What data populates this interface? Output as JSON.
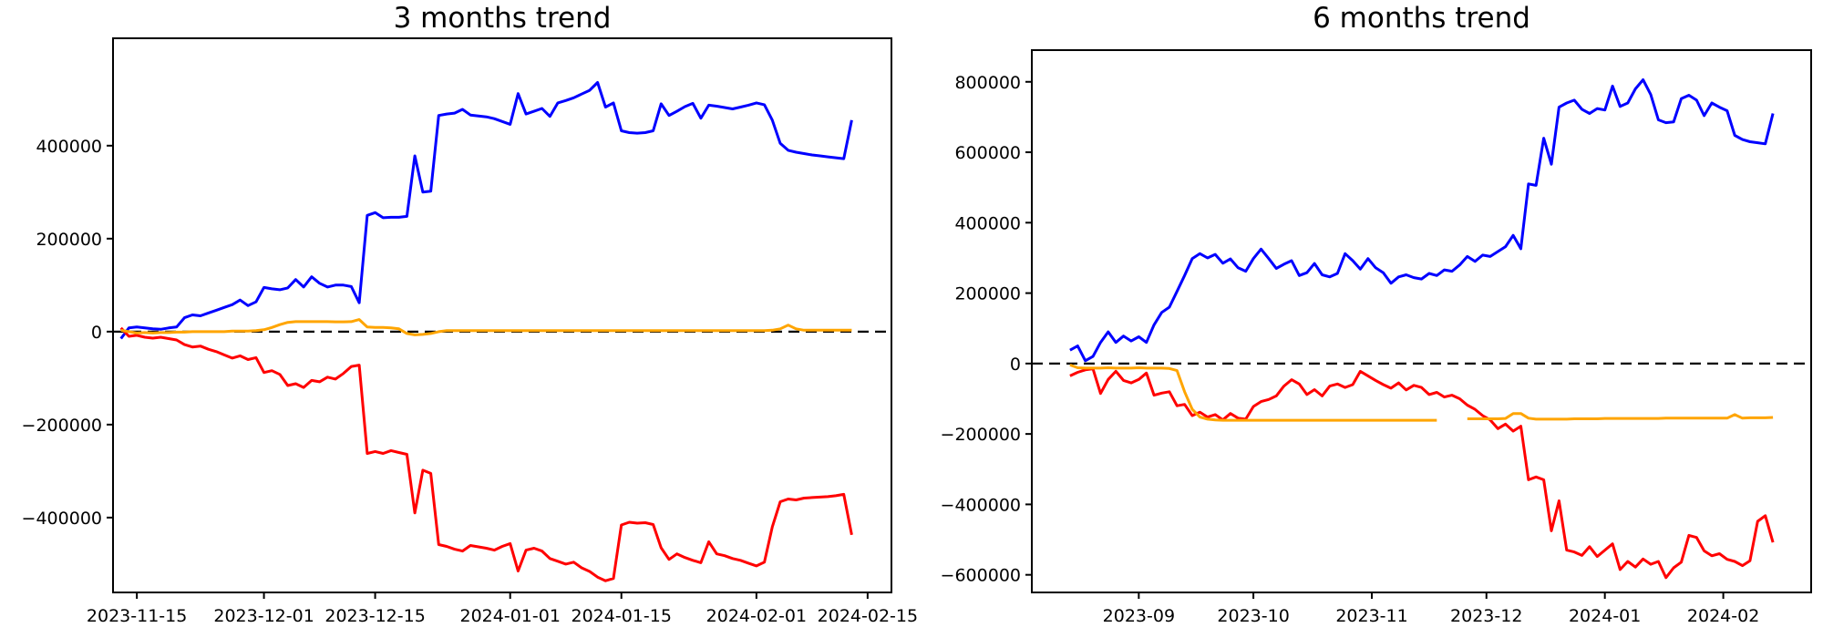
{
  "figure": {
    "background": "#ffffff",
    "axes_box_color": "#000000"
  },
  "chart_data": [
    {
      "type": "line",
      "title": "3 months trend",
      "legend": null,
      "grid": false,
      "xlim": [
        "2023-11-12",
        "2024-02-18"
      ],
      "ylim": [
        -561000,
        631000
      ],
      "yticks": [
        {
          "value": 400000,
          "label": "400000"
        },
        {
          "value": 200000,
          "label": "200000"
        },
        {
          "value": 0,
          "label": "0"
        },
        {
          "value": -200000,
          "label": "−200000"
        },
        {
          "value": -400000,
          "label": "−400000"
        }
      ],
      "xticks": [
        {
          "date": "2023-11-15",
          "label": "2023-11-15"
        },
        {
          "date": "2023-12-01",
          "label": "2023-12-01"
        },
        {
          "date": "2023-12-15",
          "label": "2023-12-15"
        },
        {
          "date": "2024-01-01",
          "label": "2024-01-01"
        },
        {
          "date": "2024-01-15",
          "label": "2024-01-15"
        },
        {
          "date": "2024-02-01",
          "label": "2024-02-01"
        },
        {
          "date": "2024-02-15",
          "label": "2024-02-15"
        }
      ],
      "zero_line": {
        "style": "dashed",
        "color": "#000000"
      },
      "x_start": "2023-11-13",
      "x_step_days": 1,
      "series": [
        {
          "name": "blue",
          "color": "#0000ff",
          "values": [
            -15000,
            8000,
            10000,
            8000,
            6000,
            5000,
            8000,
            10000,
            30000,
            36000,
            34000,
            40000,
            46000,
            52000,
            58000,
            68000,
            56000,
            64000,
            95000,
            92000,
            90000,
            94000,
            112000,
            96000,
            118000,
            104000,
            96000,
            100000,
            100000,
            97000,
            62000,
            250000,
            256000,
            245000,
            246000,
            246000,
            248000,
            378000,
            300000,
            302000,
            465000,
            468000,
            470000,
            478000,
            466000,
            464000,
            462000,
            458000,
            452000,
            446000,
            512000,
            468000,
            474000,
            480000,
            463000,
            492000,
            497000,
            503000,
            511000,
            519000,
            536000,
            483000,
            492000,
            432000,
            428000,
            427000,
            428000,
            432000,
            490000,
            465000,
            474000,
            484000,
            491000,
            459000,
            487000,
            485000,
            482000,
            479000,
            483000,
            487000,
            492000,
            488000,
            455000,
            405000,
            390000,
            386000,
            383000,
            380000,
            378000,
            376000,
            374000,
            372000,
            455000
          ]
        },
        {
          "name": "red",
          "color": "#ff0000",
          "values": [
            8000,
            -10000,
            -8000,
            -12000,
            -14000,
            -12000,
            -15000,
            -18000,
            -28000,
            -33000,
            -31000,
            -38000,
            -43000,
            -50000,
            -57000,
            -52000,
            -60000,
            -56000,
            -88000,
            -84000,
            -92000,
            -116000,
            -112000,
            -120000,
            -105000,
            -108000,
            -98000,
            -102000,
            -90000,
            -75000,
            -72000,
            -262000,
            -258000,
            -262000,
            -256000,
            -260000,
            -264000,
            -390000,
            -298000,
            -305000,
            -458000,
            -462000,
            -468000,
            -472000,
            -460000,
            -463000,
            -466000,
            -470000,
            -462000,
            -456000,
            -515000,
            -470000,
            -466000,
            -472000,
            -488000,
            -494000,
            -500000,
            -496000,
            -508000,
            -516000,
            -528000,
            -536000,
            -531000,
            -416000,
            -410000,
            -412000,
            -411000,
            -415000,
            -465000,
            -490000,
            -478000,
            -486000,
            -492000,
            -497000,
            -452000,
            -478000,
            -482000,
            -488000,
            -492000,
            -498000,
            -504000,
            -496000,
            -420000,
            -366000,
            -360000,
            -362000,
            -358000,
            -357000,
            -356000,
            -355000,
            -353000,
            -350000,
            -437000
          ]
        },
        {
          "name": "orange",
          "color": "#ffa500",
          "values": [
            3000,
            0,
            -3000,
            -2000,
            -3000,
            -2000,
            -2000,
            -1000,
            -1000,
            0,
            0,
            0,
            0,
            0,
            1000,
            1000,
            1000,
            2000,
            4000,
            9000,
            15000,
            20000,
            21500,
            21500,
            21500,
            21500,
            21500,
            21000,
            21000,
            21500,
            26000,
            10000,
            9000,
            9000,
            8000,
            6000,
            -4000,
            -7000,
            -6000,
            -4000,
            0,
            2000,
            2000,
            2000,
            2000,
            2000,
            2000,
            2000,
            2000,
            2000,
            2000,
            2000,
            2000,
            2000,
            2000,
            2000,
            2000,
            2000,
            2000,
            2000,
            2000,
            2000,
            2000,
            2000,
            2000,
            2000,
            2000,
            2000,
            2000,
            2000,
            2000,
            2000,
            2000,
            2000,
            2000,
            2000,
            2000,
            2000,
            2000,
            2000,
            2000,
            2000,
            3000,
            6000,
            14000,
            6000,
            3000,
            3000,
            3000,
            3000,
            3000,
            3000,
            3000
          ]
        }
      ]
    },
    {
      "type": "line",
      "title": "6 months trend",
      "legend": null,
      "grid": false,
      "xlim": [
        "2023-08-04",
        "2024-02-24"
      ],
      "ylim": [
        -650000,
        890000
      ],
      "yticks": [
        {
          "value": 800000,
          "label": "800000"
        },
        {
          "value": 600000,
          "label": "600000"
        },
        {
          "value": 400000,
          "label": "400000"
        },
        {
          "value": 200000,
          "label": "200000"
        },
        {
          "value": 0,
          "label": "0"
        },
        {
          "value": -200000,
          "label": "−200000"
        },
        {
          "value": -400000,
          "label": "−400000"
        },
        {
          "value": -600000,
          "label": "−600000"
        }
      ],
      "xticks": [
        {
          "date": "2023-09-01",
          "label": "2023-09"
        },
        {
          "date": "2023-10-01",
          "label": "2023-10"
        },
        {
          "date": "2023-11-01",
          "label": "2023-11"
        },
        {
          "date": "2023-12-01",
          "label": "2023-12"
        },
        {
          "date": "2024-01-01",
          "label": "2024-01"
        },
        {
          "date": "2024-02-01",
          "label": "2024-02"
        }
      ],
      "zero_line": {
        "style": "dashed",
        "color": "#000000"
      },
      "x_start": "2023-08-14",
      "x_step_days": 2,
      "series": [
        {
          "name": "blue",
          "color": "#0000ff",
          "values": [
            38000,
            50000,
            8000,
            20000,
            60000,
            90000,
            60000,
            78000,
            64000,
            76000,
            60000,
            110000,
            145000,
            160000,
            205000,
            250000,
            298000,
            312000,
            300000,
            310000,
            285000,
            297000,
            272000,
            262000,
            298000,
            325000,
            298000,
            270000,
            282000,
            292000,
            250000,
            258000,
            284000,
            252000,
            246000,
            256000,
            312000,
            292000,
            268000,
            298000,
            272000,
            258000,
            228000,
            246000,
            252000,
            244000,
            240000,
            256000,
            250000,
            266000,
            262000,
            280000,
            304000,
            290000,
            308000,
            304000,
            318000,
            332000,
            364000,
            326000,
            510000,
            506000,
            640000,
            566000,
            728000,
            740000,
            748000,
            722000,
            710000,
            724000,
            720000,
            788000,
            730000,
            740000,
            780000,
            806000,
            764000,
            692000,
            684000,
            686000,
            752000,
            762000,
            748000,
            704000,
            740000,
            728000,
            718000,
            648000,
            636000,
            630000,
            627000,
            624000,
            710000
          ]
        },
        {
          "name": "red",
          "color": "#ff0000",
          "values": [
            -35000,
            -25000,
            -18000,
            -15000,
            -85000,
            -45000,
            -22000,
            -48000,
            -55000,
            -45000,
            -27000,
            -90000,
            -84000,
            -80000,
            -120000,
            -116000,
            -148000,
            -138000,
            -152000,
            -145000,
            -160000,
            -142000,
            -155000,
            -158000,
            -122000,
            -108000,
            -102000,
            -92000,
            -64000,
            -46000,
            -58000,
            -88000,
            -74000,
            -92000,
            -64000,
            -58000,
            -68000,
            -60000,
            -22000,
            -35000,
            -48000,
            -60000,
            -70000,
            -55000,
            -75000,
            -62000,
            -68000,
            -88000,
            -82000,
            -95000,
            -90000,
            -100000,
            -118000,
            -130000,
            -148000,
            -160000,
            -185000,
            -172000,
            -192000,
            -178000,
            -330000,
            -322000,
            -330000,
            -475000,
            -390000,
            -530000,
            -535000,
            -545000,
            -520000,
            -548000,
            -530000,
            -512000,
            -585000,
            -562000,
            -578000,
            -555000,
            -570000,
            -562000,
            -608000,
            -580000,
            -564000,
            -488000,
            -494000,
            -532000,
            -546000,
            -540000,
            -556000,
            -562000,
            -574000,
            -560000,
            -448000,
            -432000,
            -508000
          ]
        },
        {
          "name": "orange",
          "color": "#ffa500",
          "values": [
            -4000,
            -12000,
            -13000,
            -13000,
            -13000,
            -12000,
            -13000,
            -13000,
            -13000,
            -12000,
            -13000,
            -13000,
            -13000,
            -14000,
            -20000,
            -80000,
            -130000,
            -152000,
            -158000,
            -160000,
            -161000,
            -161000,
            -161000,
            -161000,
            -161000,
            -161000,
            -161000,
            -161000,
            -161000,
            -161000,
            -161000,
            -161000,
            -161000,
            -161000,
            -161000,
            -161000,
            -161000,
            -161000,
            -161000,
            -161000,
            -161000,
            -161000,
            -161000,
            -161000,
            -161000,
            -161000,
            -161000,
            -161000,
            -161000,
            null,
            null,
            null,
            -157000,
            -157000,
            -157000,
            -157000,
            -157000,
            -156000,
            -142000,
            -142000,
            -155000,
            -158000,
            -158000,
            -158000,
            -158000,
            -158000,
            -157000,
            -157000,
            -157000,
            -157000,
            -156000,
            -156000,
            -156000,
            -156000,
            -156000,
            -156000,
            -156000,
            -156000,
            -155000,
            -155000,
            -155000,
            -155000,
            -155000,
            -155000,
            -155000,
            -155000,
            -155000,
            -145000,
            -155000,
            -154000,
            -154000,
            -154000,
            -153000
          ]
        }
      ]
    }
  ]
}
